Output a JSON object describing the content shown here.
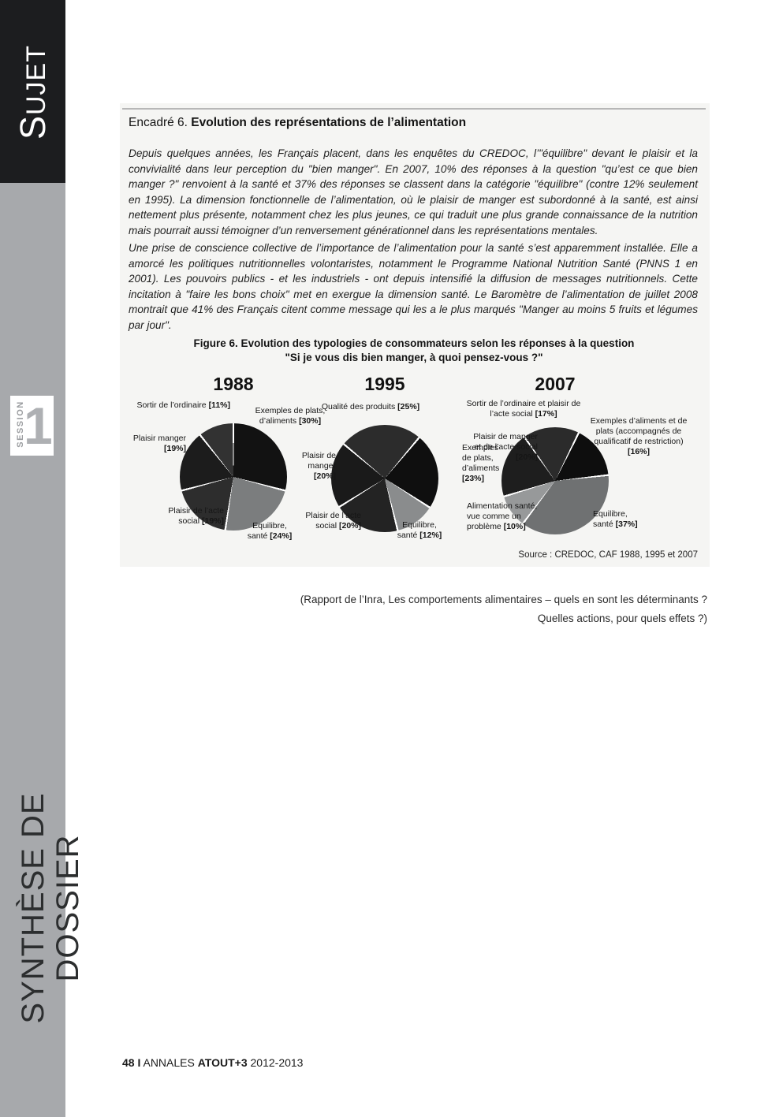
{
  "sidebar": {
    "top_label_first": "S",
    "top_label_rest": "UJET",
    "session_label": "SESSION",
    "session_number": "1",
    "bottom_label": "SYNTHÈSE DE DOSSIER"
  },
  "encadre": {
    "heading_prefix": "Encadré 6.",
    "heading_title": "Evolution des représentations de l’alimentation",
    "paragraph1": "Depuis quelques années, les Français placent, dans les enquêtes du CREDOC, l’\"équilibre\" devant le plaisir et la convivialité dans leur perception du \"bien manger\". En 2007, 10% des réponses à la question \"qu’est ce que bien manger ?\" renvoient à la santé et 37% des réponses se classent dans la catégorie \"équilibre\" (contre 12% seulement en 1995). La dimension fonctionnelle de l’alimentation, où le plaisir de manger est subordonné à la santé, est ainsi nettement plus présente, notamment chez les plus jeunes, ce qui traduit une plus grande connaissance de la nutrition mais pourrait aussi témoigner d’un renversement générationnel dans les représentations mentales.",
    "paragraph2": "Une prise de conscience collective de l’importance de l’alimentation pour la santé s’est apparemment installée. Elle a amorcé les politiques nutritionnelles volontaristes, notamment le Programme National Nutrition Santé (PNNS 1 en 2001). Les pouvoirs publics - et les industriels - ont depuis intensifié la diffusion de messages nutritionnels. Cette incitation à \"faire les bons choix\" met en exergue la dimension santé. Le Baromètre de l’alimentation de juillet 2008 montrait que 41% des Français citent comme message qui les a le plus marqués \"Manger au moins 5 fruits et légumes par jour\"."
  },
  "figure": {
    "title_line1": "Figure 6. Evolution des typologies de consommateurs selon les réponses à la question",
    "title_line2": "\"Si je vous dis bien manger, à quoi pensez-vous ?\"",
    "source": "Source : CREDOC, CAF 1988, 1995 et 2007"
  },
  "chart_data": {
    "type": "pie",
    "title": "Figure 6. Evolution des typologies de consommateurs selon les réponses à la question \"Si je vous dis bien manger, à quoi pensez-vous ?\"",
    "source": "Source : CREDOC, CAF 1988, 1995 et 2007",
    "pies": [
      {
        "year": "1988",
        "start_angle": 0,
        "slices": [
          {
            "label": "Exemples de plats, d’aliments",
            "pct": "[30%]",
            "value": 30,
            "color": "#121212"
          },
          {
            "label": "Equilibre, santé",
            "pct": "[24%]",
            "value": 24,
            "color": "#7b7d7e"
          },
          {
            "label": "Plaisir de l’acte social",
            "pct": "[19%]",
            "value": 19,
            "color": "#2d2d2d"
          },
          {
            "label": "Plaisir manger",
            "pct": "[19%]",
            "value": 19,
            "color": "#1c1c1c"
          },
          {
            "label": "Sortir de l’ordinaire",
            "pct": "[11%]",
            "value": 11,
            "color": "#323232"
          }
        ]
      },
      {
        "year": "1995",
        "start_angle": -50,
        "slices": [
          {
            "label": "Qualité des produits",
            "pct": "[25%]",
            "value": 25,
            "color": "#2c2c2c"
          },
          {
            "label": "Exemples de plats, d’aliments",
            "pct": "[23%]",
            "value": 23,
            "color": "#0f0f0f"
          },
          {
            "label": "Equilibre, santé",
            "pct": "[12%]",
            "value": 12,
            "color": "#8a8c8d"
          },
          {
            "label": "Plaisir de l’acte social",
            "pct": "[20%]",
            "value": 20,
            "color": "#232323"
          },
          {
            "label": "Plaisir de manger",
            "pct": "[20%]",
            "value": 20,
            "color": "#1a1a1a"
          }
        ]
      },
      {
        "year": "2007",
        "start_angle": -35,
        "slices": [
          {
            "label": "Sortir de l’ordinaire et plaisir de l’acte social",
            "pct": "[17%]",
            "value": 17,
            "color": "#2b2b2b"
          },
          {
            "label": "Exemples d’aliments et de plats (accompagnés de qualificatif de restriction)",
            "pct": "[16%]",
            "value": 16,
            "color": "#0e0e0e"
          },
          {
            "label": "Equilibre, santé",
            "pct": "[37%]",
            "value": 37,
            "color": "#6f7172"
          },
          {
            "label": "Alimentation santé, vue comme un problème",
            "pct": "[10%]",
            "value": 10,
            "color": "#97999a"
          },
          {
            "label": "Plaisir de manger et de l’acte social",
            "pct": "[20%]",
            "value": 20,
            "color": "#1e1e1e"
          }
        ]
      }
    ]
  },
  "caption": {
    "line1": "(Rapport de l’Inra, Les comportements alimentaires – quels en sont les déterminants ?",
    "line2": "Quelles actions, pour quels effets ?)"
  },
  "footer": {
    "page_number": "48",
    "separator": "I",
    "text1": "ANNALES",
    "text2": "ATOUT+3",
    "text3": "2012-2013"
  }
}
